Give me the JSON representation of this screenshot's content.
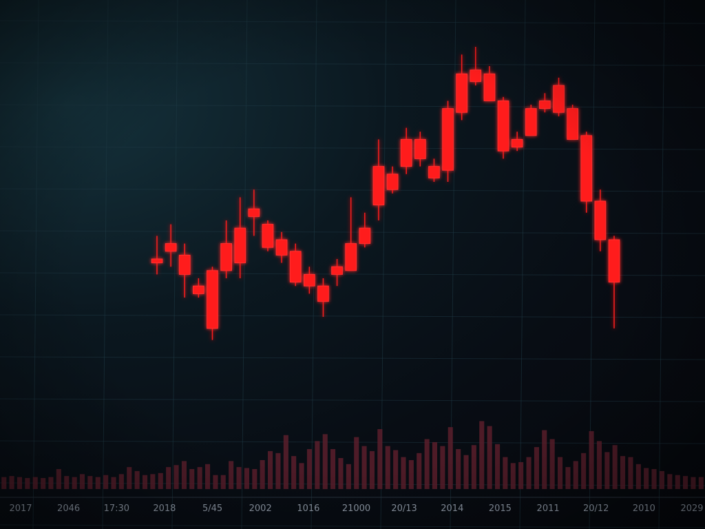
{
  "chart_data": {
    "type": "candlestick",
    "title": "",
    "xlabel": "",
    "ylabel": "",
    "grid": true,
    "legend": "none",
    "colors": {
      "candle": "#ff1a1a",
      "candle_glow": "#ff3030",
      "volume": "#5a1e2c",
      "grid": "#1f3a46",
      "tick_text": "#8f99a6",
      "baseline": "#2a3440"
    },
    "x_tick_labels": [
      "2017",
      "2046",
      "17:30",
      "2018",
      "5/45",
      "2002",
      "1016",
      "21000",
      "20/13",
      "2014",
      "2015",
      "2011",
      "20/12",
      "2010",
      "2029"
    ],
    "ylim": [
      0,
      100
    ],
    "volume_ylim": [
      0,
      100
    ],
    "candles": [
      {
        "o": 40,
        "h": 46,
        "l": 36,
        "c": 39
      },
      {
        "o": 44,
        "h": 49,
        "l": 38,
        "c": 42
      },
      {
        "o": 41,
        "h": 44,
        "l": 30,
        "c": 36
      },
      {
        "o": 33,
        "h": 35,
        "l": 30,
        "c": 31
      },
      {
        "o": 37,
        "h": 38,
        "l": 19,
        "c": 22
      },
      {
        "o": 44,
        "h": 50,
        "l": 35,
        "c": 37
      },
      {
        "o": 48,
        "h": 56,
        "l": 35,
        "c": 39
      },
      {
        "o": 51,
        "h": 58,
        "l": 46,
        "c": 53
      },
      {
        "o": 49,
        "h": 50,
        "l": 42,
        "c": 43
      },
      {
        "o": 45,
        "h": 47,
        "l": 39,
        "c": 41
      },
      {
        "o": 42,
        "h": 44,
        "l": 33,
        "c": 34
      },
      {
        "o": 36,
        "h": 38,
        "l": 31,
        "c": 33
      },
      {
        "o": 33,
        "h": 35,
        "l": 25,
        "c": 29
      },
      {
        "o": 38,
        "h": 40,
        "l": 33,
        "c": 36
      },
      {
        "o": 44,
        "h": 56,
        "l": 38,
        "c": 37
      },
      {
        "o": 48,
        "h": 52,
        "l": 43,
        "c": 44
      },
      {
        "o": 64,
        "h": 71,
        "l": 50,
        "c": 54
      },
      {
        "o": 62,
        "h": 64,
        "l": 57,
        "c": 58
      },
      {
        "o": 71,
        "h": 74,
        "l": 62,
        "c": 64
      },
      {
        "o": 71,
        "h": 73,
        "l": 64,
        "c": 66
      },
      {
        "o": 64,
        "h": 66,
        "l": 60,
        "c": 61
      },
      {
        "o": 79,
        "h": 81,
        "l": 60,
        "c": 63
      },
      {
        "o": 88,
        "h": 93,
        "l": 76,
        "c": 78
      },
      {
        "o": 89,
        "h": 95,
        "l": 85,
        "c": 86
      },
      {
        "o": 88,
        "h": 90,
        "l": 81,
        "c": 81
      },
      {
        "o": 81,
        "h": 82,
        "l": 66,
        "c": 68
      },
      {
        "o": 71,
        "h": 73,
        "l": 68,
        "c": 69
      },
      {
        "o": 79,
        "h": 80,
        "l": 72,
        "c": 72
      },
      {
        "o": 81,
        "h": 83,
        "l": 78,
        "c": 79
      },
      {
        "o": 85,
        "h": 87,
        "l": 77,
        "c": 78
      },
      {
        "o": 79,
        "h": 80,
        "l": 71,
        "c": 71
      },
      {
        "o": 72,
        "h": 73,
        "l": 52,
        "c": 55
      },
      {
        "o": 55,
        "h": 58,
        "l": 42,
        "c": 45
      },
      {
        "o": 45,
        "h": 46,
        "l": 22,
        "c": 34
      }
    ],
    "volume": [
      12,
      13,
      12,
      11,
      12,
      11,
      12,
      20,
      13,
      12,
      15,
      13,
      12,
      14,
      12,
      15,
      22,
      18,
      14,
      15,
      16,
      22,
      24,
      28,
      20,
      22,
      25,
      14,
      14,
      28,
      22,
      21,
      20,
      29,
      38,
      36,
      54,
      33,
      26,
      40,
      48,
      55,
      40,
      31,
      25,
      52,
      43,
      38,
      60,
      43,
      39,
      32,
      29,
      36,
      50,
      47,
      43,
      62,
      40,
      34,
      44,
      68,
      63,
      45,
      32,
      26,
      27,
      32,
      42,
      59,
      50,
      32,
      22,
      28,
      36,
      58,
      48,
      37,
      44,
      33,
      32,
      25,
      21,
      20,
      18,
      15,
      14,
      13,
      12,
      12
    ]
  }
}
